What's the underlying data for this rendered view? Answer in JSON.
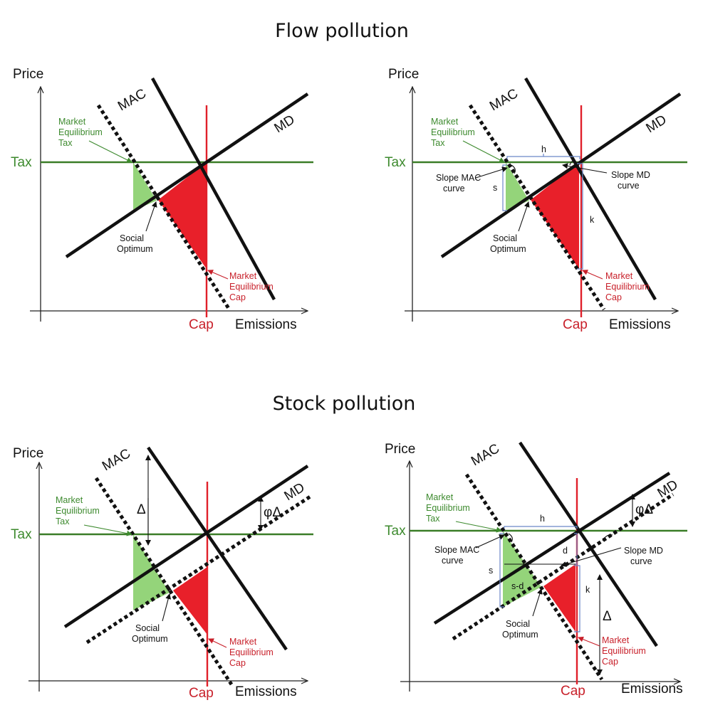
{
  "titles": {
    "flow": "Flow pollution",
    "stock": "Stock pollution"
  },
  "axis": {
    "price": "Price",
    "emissions": "Emissions",
    "tax": "Tax",
    "cap": "Cap"
  },
  "curves": {
    "mac": "MAC",
    "md": "MD"
  },
  "annotations": {
    "market_tax": [
      "Market",
      "Equilibrium",
      "Tax"
    ],
    "market_cap": [
      "Market",
      "Equilibrium",
      "Cap"
    ],
    "social_optimum": [
      "Social",
      "Optimum"
    ],
    "slope_mac": [
      "Slope MAC",
      "curve"
    ],
    "slope_md": [
      "Slope MD",
      "curve"
    ],
    "h": "h",
    "s": "s",
    "k": "k",
    "d": "d",
    "s_minus_d": "s-d",
    "delta": "Δ",
    "phi_delta": "φΔ"
  },
  "colors": {
    "tax_green": "#3a7d27",
    "cap_red": "#e0202a",
    "green_area": "#94d47a",
    "red_area": "#e8202a"
  }
}
